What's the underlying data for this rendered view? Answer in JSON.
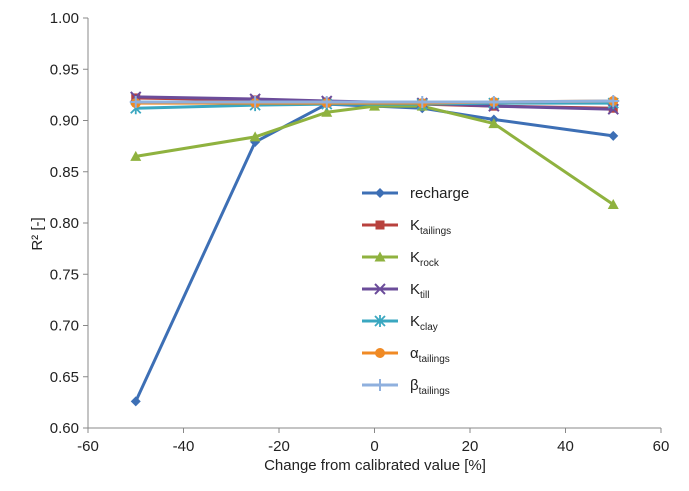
{
  "chart_data": {
    "type": "line",
    "title": "",
    "xlabel": "Change from calibrated value [%]",
    "ylabel": "R² [-]",
    "xlim": [
      -60,
      60
    ],
    "ylim": [
      0.6,
      1.0
    ],
    "x_ticks": [
      "-60",
      "-40",
      "-20",
      "0",
      "20",
      "40",
      "60"
    ],
    "y_ticks": [
      "0.60",
      "0.65",
      "0.70",
      "0.75",
      "0.80",
      "0.85",
      "0.90",
      "0.95",
      "1.00"
    ],
    "grid": "none",
    "legend_position": "center-right",
    "series": [
      {
        "name": "recharge",
        "name_main": "recharge",
        "name_sub": "",
        "color": "#3d6fb5",
        "marker": "diamond",
        "x": [
          -50,
          -25,
          -10,
          10,
          25,
          50
        ],
        "y": [
          0.626,
          0.879,
          0.916,
          0.912,
          0.901,
          0.885
        ]
      },
      {
        "name": "Ktailings",
        "name_main": "K",
        "name_sub": "tailings",
        "color": "#b8413d",
        "marker": "square",
        "x": [
          -50,
          -25,
          -10,
          10,
          25,
          50
        ],
        "y": [
          0.922,
          0.92,
          0.918,
          0.916,
          0.914,
          0.912
        ]
      },
      {
        "name": "Krock",
        "name_main": "K",
        "name_sub": "rock",
        "color": "#8fb23f",
        "marker": "triangle",
        "x": [
          -50,
          -25,
          -10,
          0,
          10,
          25,
          50
        ],
        "y": [
          0.865,
          0.884,
          0.908,
          0.914,
          0.914,
          0.897,
          0.818
        ]
      },
      {
        "name": "Ktill",
        "name_main": "K",
        "name_sub": "till",
        "color": "#6b4c9a",
        "marker": "x",
        "x": [
          -50,
          -25,
          -10,
          10,
          25,
          50
        ],
        "y": [
          0.923,
          0.921,
          0.919,
          0.917,
          0.914,
          0.911
        ]
      },
      {
        "name": "Kclay",
        "name_main": "K",
        "name_sub": "clay",
        "color": "#3aa7c0",
        "marker": "asterisk",
        "x": [
          -50,
          -25,
          -10,
          10,
          25,
          50
        ],
        "y": [
          0.912,
          0.915,
          0.916,
          0.916,
          0.917,
          0.917
        ]
      },
      {
        "name": "αtailings",
        "name_main": "α",
        "name_sub": "tailings",
        "color": "#f08a24",
        "marker": "circle",
        "x": [
          -50,
          -25,
          -10,
          10,
          25,
          50
        ],
        "y": [
          0.917,
          0.917,
          0.917,
          0.917,
          0.918,
          0.919
        ]
      },
      {
        "name": "βtailings",
        "name_main": "β",
        "name_sub": "tailings",
        "color": "#8fb0de",
        "marker": "plus",
        "x": [
          -50,
          -25,
          -10,
          10,
          25,
          50
        ],
        "y": [
          0.918,
          0.918,
          0.918,
          0.918,
          0.918,
          0.919
        ]
      }
    ]
  }
}
